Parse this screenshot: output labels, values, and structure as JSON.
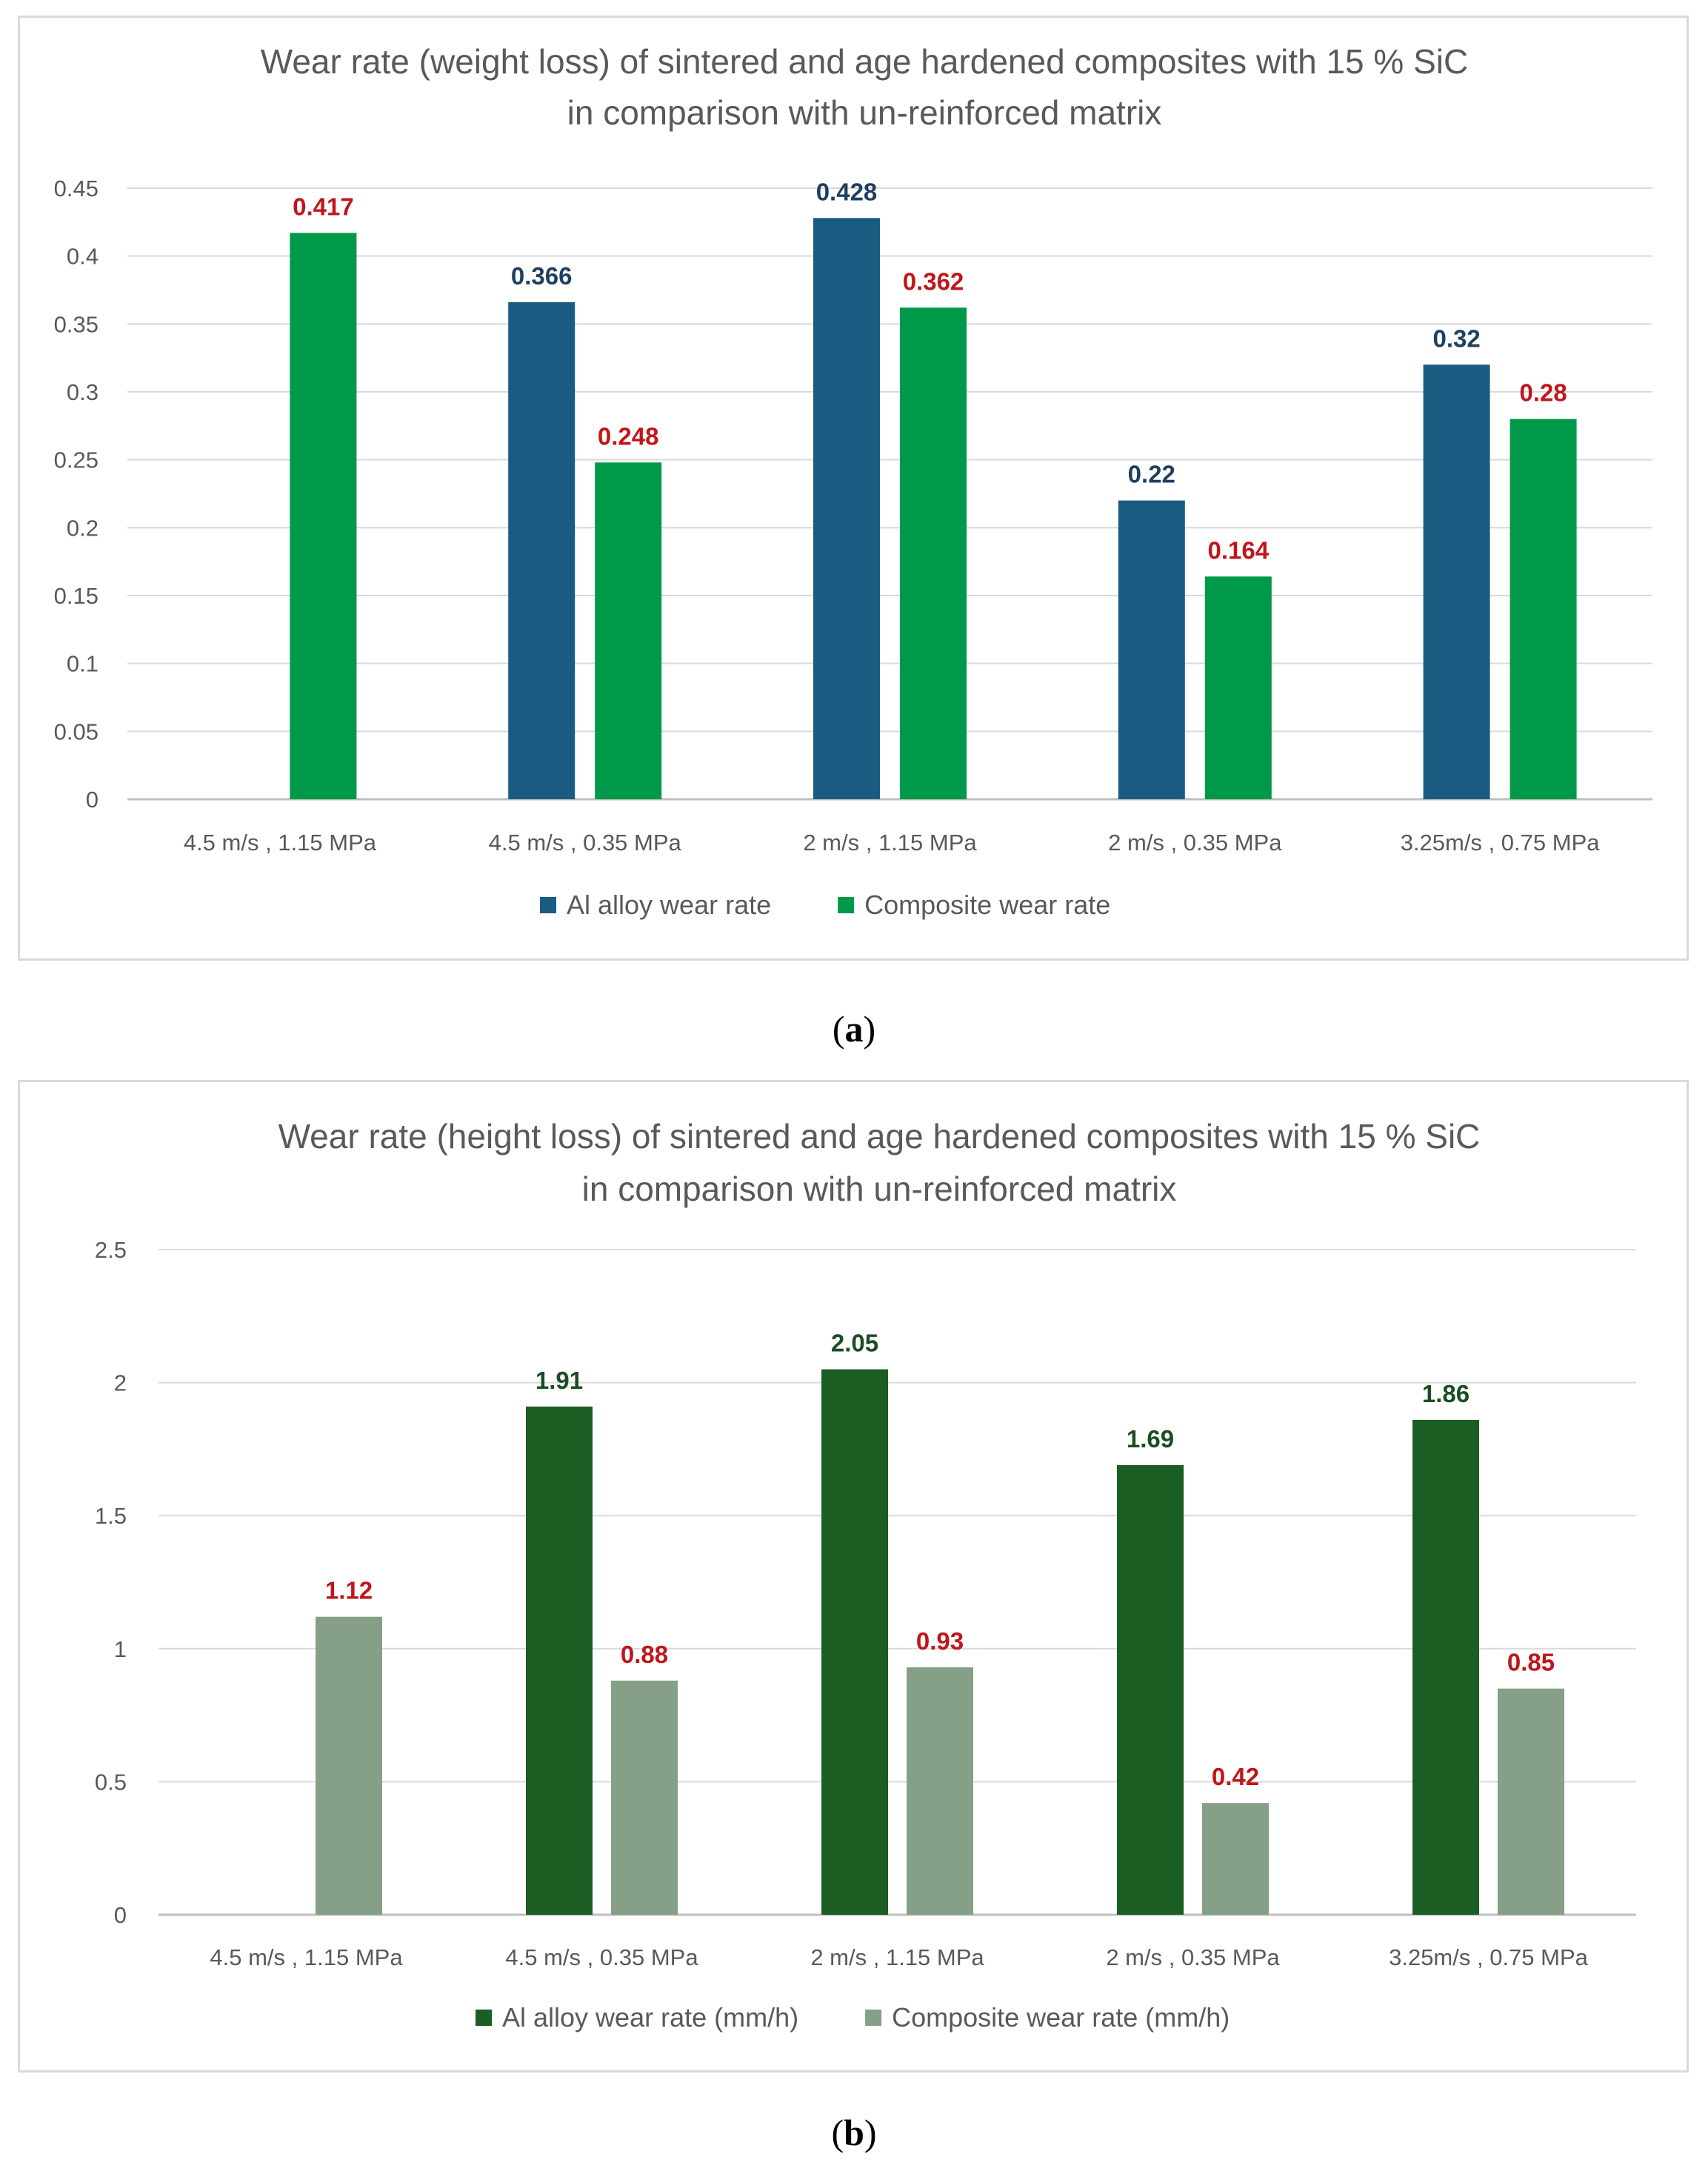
{
  "chart_data": [
    {
      "type": "bar",
      "title": [
        "Wear rate (weight loss)  of  sintered and age hardened composites with 15 % SiC",
        "in comparison with un-reinforced matrix"
      ],
      "categories": [
        "4.5 m/s , 1.15 MPa",
        "4.5 m/s , 0.35 MPa",
        "2 m/s , 1.15 MPa",
        "2 m/s , 0.35 MPa",
        "3.25m/s , 0.75 MPa"
      ],
      "yticks": [
        "0",
        "0.05",
        "0.1",
        "0.15",
        "0.2",
        "0.25",
        "0.3",
        "0.35",
        "0.4",
        "0.45"
      ],
      "ylim": [
        0,
        0.45
      ],
      "grid": true,
      "legend_position": "bottom",
      "series": [
        {
          "name": "Al alloy wear rate",
          "color": "#1a5b82",
          "label_color": "#1f3f5f",
          "values": [
            null,
            0.366,
            0.428,
            0.22,
            0.32
          ],
          "labels": [
            "",
            "0.366",
            "0.428",
            "0.22",
            "0.32"
          ]
        },
        {
          "name": "Composite wear rate",
          "color": "#00994a",
          "label_color": "#c0161b",
          "values": [
            0.417,
            0.248,
            0.362,
            0.164,
            0.28
          ],
          "labels": [
            "0.417",
            "0.248",
            "0.362",
            "0.164",
            "0.28"
          ]
        }
      ]
    },
    {
      "type": "bar",
      "title": [
        "Wear rate (height loss) of sintered and age hardened composites with 15 % SiC",
        "in comparison with un-reinforced matrix"
      ],
      "categories": [
        "4.5 m/s , 1.15 MPa",
        "4.5 m/s , 0.35 MPa",
        "2 m/s , 1.15 MPa",
        "2 m/s , 0.35 MPa",
        "3.25m/s , 0.75 MPa"
      ],
      "yticks": [
        "0",
        "0.5",
        "1",
        "1.5",
        "2",
        "2.5"
      ],
      "ylim": [
        0,
        2.5
      ],
      "grid": true,
      "legend_position": "bottom",
      "series": [
        {
          "name": "Al alloy wear rate (mm/h)",
          "color": "#1a5e23",
          "label_color": "#1b4d22",
          "values": [
            null,
            1.91,
            2.05,
            1.69,
            1.86
          ],
          "labels": [
            "",
            "1.91",
            "2.05",
            "1.69",
            "1.86"
          ]
        },
        {
          "name": "Composite wear rate (mm/h)",
          "color": "#869f87",
          "label_color": "#c0161b",
          "values": [
            1.12,
            0.88,
            0.93,
            0.42,
            0.85
          ],
          "labels": [
            "1.12",
            "0.88",
            "0.93",
            "0.42",
            "0.85"
          ]
        }
      ]
    }
  ],
  "captions": [
    "a",
    "b"
  ]
}
